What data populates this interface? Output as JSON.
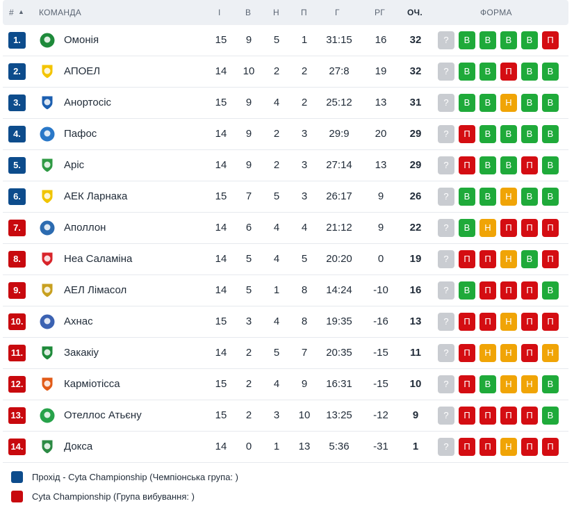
{
  "headers": {
    "rank": "#",
    "sort_indicator": "▲",
    "team": "КОМАНДА",
    "games": "І",
    "wins": "В",
    "draws": "Н",
    "losses": "П",
    "goals": "Г",
    "goal_diff": "РГ",
    "points": "ОЧ.",
    "form": "ФОРМА"
  },
  "colors": {
    "championship": "#0d4c8c",
    "relegation": "#c8090e",
    "win": "#1faa3a",
    "draw": "#f0a406",
    "loss": "#d40d12",
    "unknown": "#c9ccd1"
  },
  "rows": [
    {
      "rank": "1.",
      "team": "Омонія",
      "games": "15",
      "wins": "9",
      "draws": "5",
      "losses": "1",
      "goals": "31:15",
      "goal_diff": "16",
      "points": "32",
      "group": "championship",
      "logo": "omonia-logo",
      "form": [
        "?",
        "В",
        "В",
        "В",
        "В",
        "П"
      ]
    },
    {
      "rank": "2.",
      "team": "АПОЕЛ",
      "games": "14",
      "wins": "10",
      "draws": "2",
      "losses": "2",
      "goals": "27:8",
      "goal_diff": "19",
      "points": "32",
      "group": "championship",
      "logo": "apoel-logo",
      "form": [
        "?",
        "В",
        "В",
        "П",
        "В",
        "В"
      ]
    },
    {
      "rank": "3.",
      "team": "Анортосіс",
      "games": "15",
      "wins": "9",
      "draws": "4",
      "losses": "2",
      "goals": "25:12",
      "goal_diff": "13",
      "points": "31",
      "group": "championship",
      "logo": "anorthosis-logo",
      "form": [
        "?",
        "В",
        "В",
        "Н",
        "В",
        "В"
      ]
    },
    {
      "rank": "4.",
      "team": "Пафос",
      "games": "14",
      "wins": "9",
      "draws": "2",
      "losses": "3",
      "goals": "29:9",
      "goal_diff": "20",
      "points": "29",
      "group": "championship",
      "logo": "pafos-logo",
      "form": [
        "?",
        "П",
        "В",
        "В",
        "В",
        "В"
      ]
    },
    {
      "rank": "5.",
      "team": "Аріс",
      "games": "14",
      "wins": "9",
      "draws": "2",
      "losses": "3",
      "goals": "27:14",
      "goal_diff": "13",
      "points": "29",
      "group": "championship",
      "logo": "aris-logo",
      "form": [
        "?",
        "П",
        "В",
        "В",
        "П",
        "В"
      ]
    },
    {
      "rank": "6.",
      "team": "АЕК Ларнака",
      "games": "15",
      "wins": "7",
      "draws": "5",
      "losses": "3",
      "goals": "26:17",
      "goal_diff": "9",
      "points": "26",
      "group": "championship",
      "logo": "aek-larnaca-logo",
      "form": [
        "?",
        "В",
        "В",
        "Н",
        "В",
        "В"
      ]
    },
    {
      "rank": "7.",
      "team": "Аполлон",
      "games": "14",
      "wins": "6",
      "draws": "4",
      "losses": "4",
      "goals": "21:12",
      "goal_diff": "9",
      "points": "22",
      "group": "relegation",
      "logo": "apollon-logo",
      "form": [
        "?",
        "В",
        "Н",
        "П",
        "П",
        "П"
      ]
    },
    {
      "rank": "8.",
      "team": "Неа Саламіна",
      "games": "14",
      "wins": "5",
      "draws": "4",
      "losses": "5",
      "goals": "20:20",
      "goal_diff": "0",
      "points": "19",
      "group": "relegation",
      "logo": "nea-salamina-logo",
      "form": [
        "?",
        "П",
        "П",
        "Н",
        "В",
        "П"
      ]
    },
    {
      "rank": "9.",
      "team": "АЕЛ Лімасол",
      "games": "14",
      "wins": "5",
      "draws": "1",
      "losses": "8",
      "goals": "14:24",
      "goal_diff": "-10",
      "points": "16",
      "group": "relegation",
      "logo": "ael-limassol-logo",
      "form": [
        "?",
        "В",
        "П",
        "П",
        "П",
        "В"
      ]
    },
    {
      "rank": "10.",
      "team": "Ахнас",
      "games": "15",
      "wins": "3",
      "draws": "4",
      "losses": "8",
      "goals": "19:35",
      "goal_diff": "-16",
      "points": "13",
      "group": "relegation",
      "logo": "achnas-logo",
      "form": [
        "?",
        "П",
        "П",
        "Н",
        "П",
        "П"
      ]
    },
    {
      "rank": "11.",
      "team": "Закакіу",
      "games": "14",
      "wins": "2",
      "draws": "5",
      "losses": "7",
      "goals": "20:35",
      "goal_diff": "-15",
      "points": "11",
      "group": "relegation",
      "logo": "zakakiou-logo",
      "form": [
        "?",
        "П",
        "Н",
        "Н",
        "П",
        "Н"
      ]
    },
    {
      "rank": "12.",
      "team": "Карміотісса",
      "games": "15",
      "wins": "2",
      "draws": "4",
      "losses": "9",
      "goals": "16:31",
      "goal_diff": "-15",
      "points": "10",
      "group": "relegation",
      "logo": "karmiotissa-logo",
      "form": [
        "?",
        "П",
        "В",
        "Н",
        "Н",
        "В"
      ]
    },
    {
      "rank": "13.",
      "team": "Отеллос Атьєну",
      "games": "15",
      "wins": "2",
      "draws": "3",
      "losses": "10",
      "goals": "13:25",
      "goal_diff": "-12",
      "points": "9",
      "group": "relegation",
      "logo": "othellos-logo",
      "form": [
        "?",
        "П",
        "П",
        "П",
        "П",
        "В"
      ]
    },
    {
      "rank": "14.",
      "team": "Докса",
      "games": "14",
      "wins": "0",
      "draws": "1",
      "losses": "13",
      "goals": "5:36",
      "goal_diff": "-31",
      "points": "1",
      "group": "relegation",
      "logo": "doxa-logo",
      "form": [
        "?",
        "П",
        "П",
        "Н",
        "П",
        "П"
      ]
    }
  ],
  "legend": [
    {
      "group": "championship",
      "text": "Прохід - Cyta Championship (Чемпіонська група: )"
    },
    {
      "group": "relegation",
      "text": "Cyta Championship (Група вибування: )"
    }
  ]
}
